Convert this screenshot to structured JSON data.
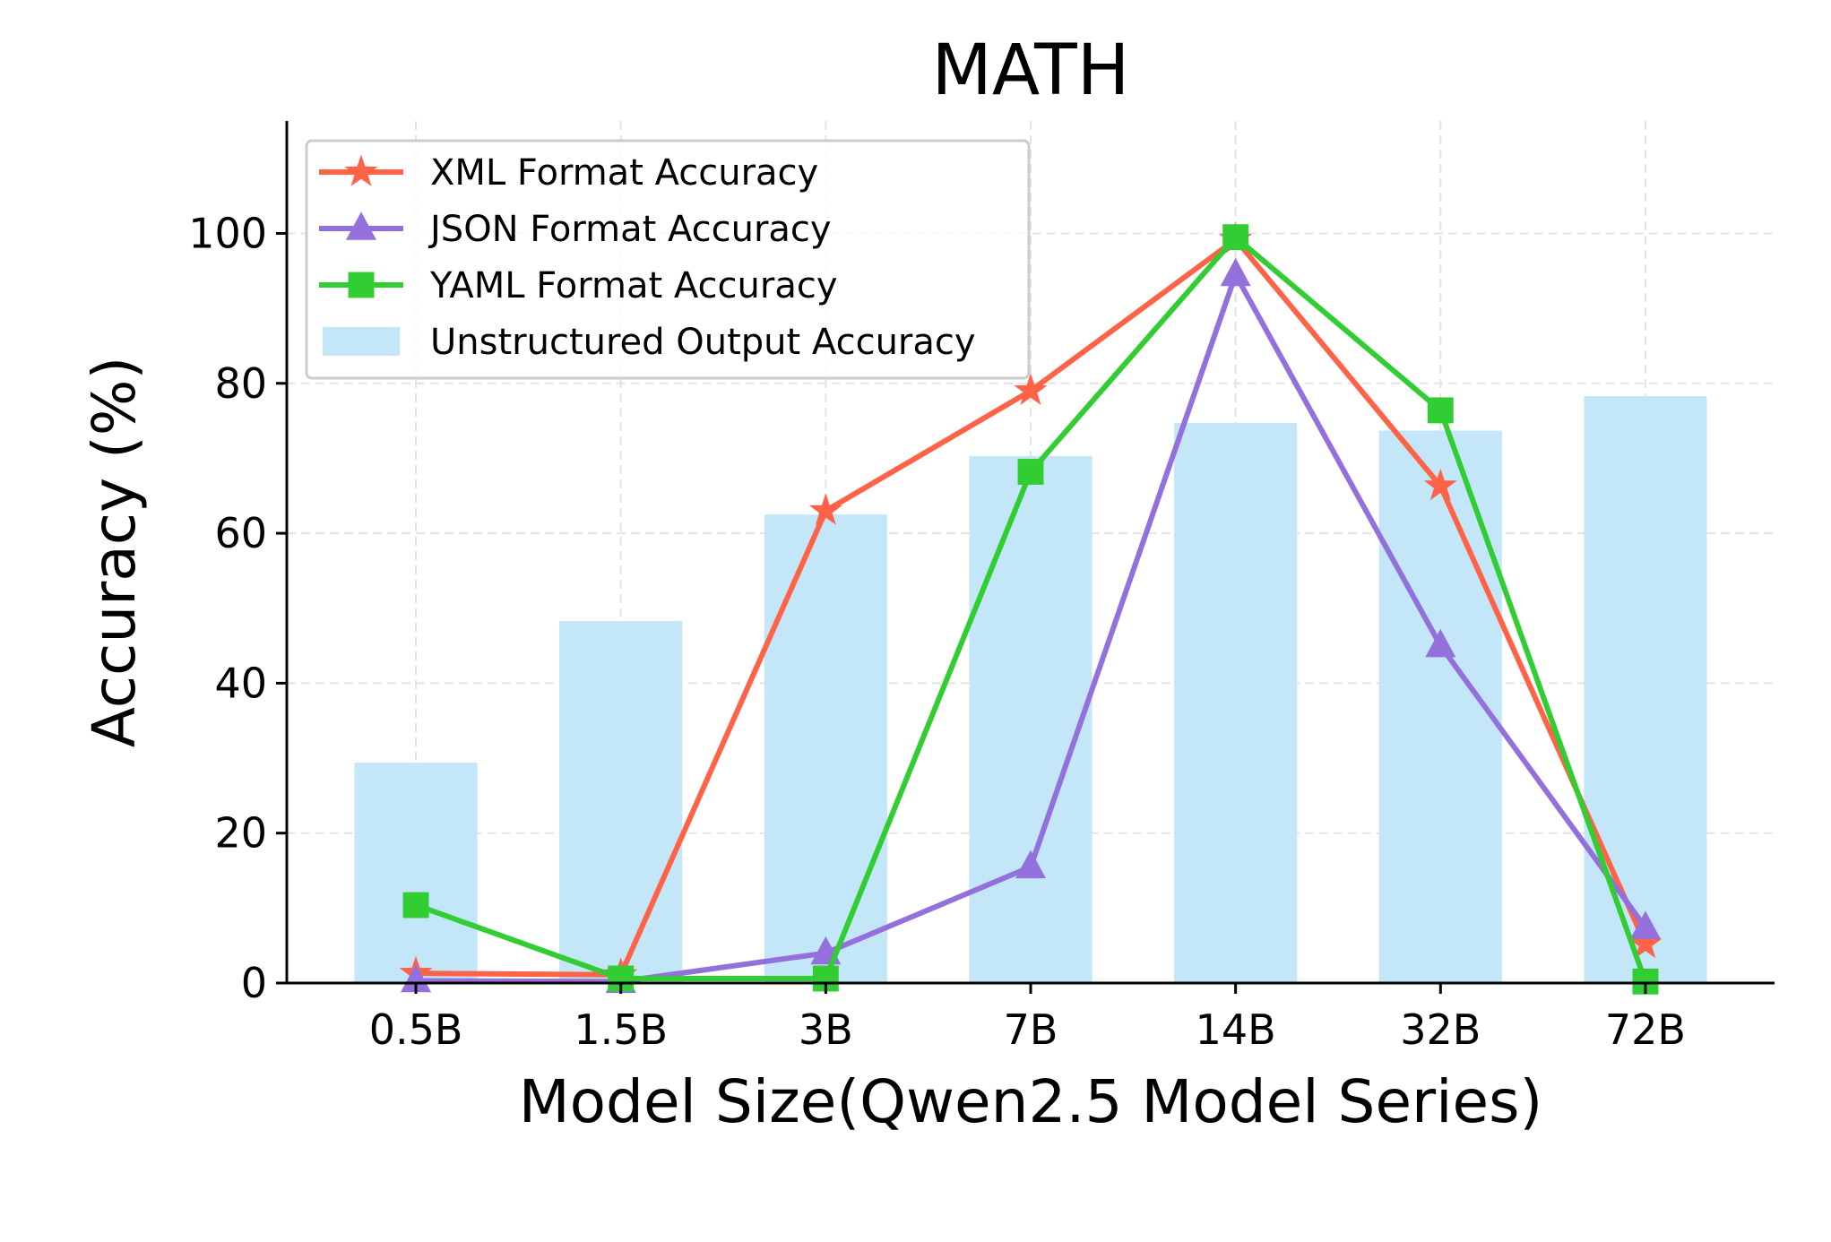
{
  "chart_data": {
    "type": "bar+line",
    "title": "MATH",
    "xlabel": "Model Size(Qwen2.5 Model Series)",
    "ylabel": "Accuracy (%)",
    "categories": [
      "0.5B",
      "1.5B",
      "3B",
      "7B",
      "14B",
      "32B",
      "72B"
    ],
    "ylim": [
      0,
      115
    ],
    "yticks": [
      0,
      20,
      40,
      60,
      80,
      100
    ],
    "grid": true,
    "legend_position": "top-left",
    "bars": {
      "name": "Unstructured Output Accuracy",
      "color": "#c4e6f9",
      "values": [
        29.4,
        48.3,
        62.5,
        70.3,
        74.7,
        73.7,
        78.3
      ]
    },
    "series": [
      {
        "name": "XML Format Accuracy",
        "color": "#ff6347",
        "marker": "star",
        "values": [
          1.3,
          1.1,
          63.0,
          79.0,
          99.2,
          66.3,
          5.2
        ]
      },
      {
        "name": "JSON Format Accuracy",
        "color": "#9370db",
        "marker": "triangle",
        "values": [
          0.3,
          0.2,
          4.0,
          15.5,
          94.5,
          45.0,
          7.4
        ]
      },
      {
        "name": "YAML Format Accuracy",
        "color": "#32cd32",
        "marker": "square",
        "values": [
          10.4,
          0.6,
          0.6,
          68.2,
          99.5,
          76.4,
          0.2
        ]
      }
    ]
  }
}
